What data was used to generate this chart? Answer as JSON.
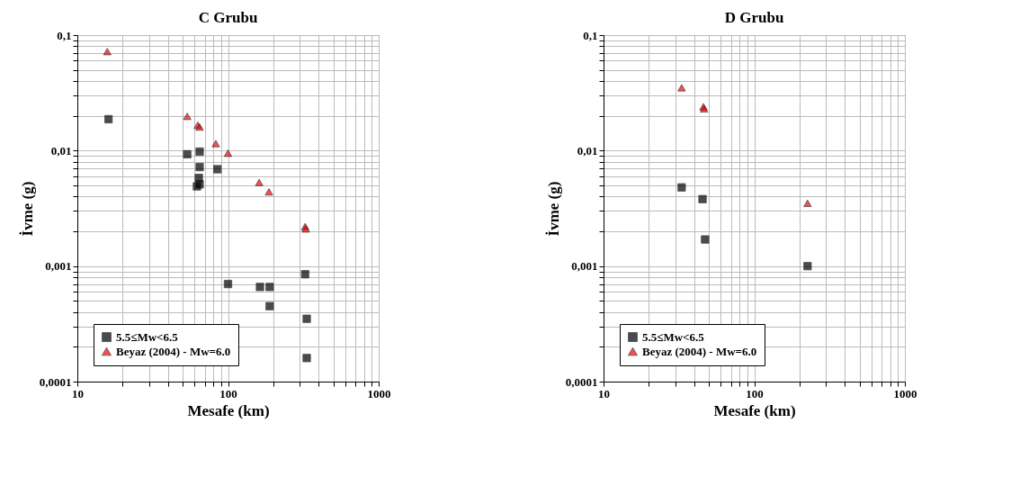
{
  "chart_data": [
    {
      "type": "scatter",
      "title": "C Grubu",
      "xlabel": "Mesafe (km)",
      "ylabel": "İvme (g)",
      "log": "xy",
      "grid": true,
      "legend": "bottom left",
      "xlim": [
        10,
        1000
      ],
      "ylim": [
        0.0001,
        0.1
      ],
      "xticks": [
        10,
        {
          "value": 20,
          "label": null
        },
        {
          "value": 30,
          "label": null
        },
        {
          "value": 40,
          "label": null
        },
        {
          "value": 50,
          "label": null
        },
        {
          "value": 60,
          "label": null
        },
        {
          "value": 70,
          "label": null
        },
        {
          "value": 80,
          "label": null
        },
        {
          "value": 90,
          "label": null
        },
        100,
        {
          "value": 200,
          "label": null
        },
        {
          "value": 300,
          "label": null
        },
        {
          "value": 400,
          "label": null
        },
        {
          "value": 500,
          "label": null
        },
        {
          "value": 600,
          "label": null
        },
        {
          "value": 700,
          "label": null
        },
        {
          "value": 800,
          "label": null
        },
        {
          "value": 900,
          "label": null
        },
        1000
      ],
      "yticks": [
        {
          "value": 0.0001,
          "label": "0,0001"
        },
        {
          "value": 0.0002,
          "label": null
        },
        {
          "value": 0.0003,
          "label": null
        },
        {
          "value": 0.0004,
          "label": null
        },
        {
          "value": 0.0005,
          "label": null
        },
        {
          "value": 0.0006,
          "label": null
        },
        {
          "value": 0.0007,
          "label": null
        },
        {
          "value": 0.0008,
          "label": null
        },
        {
          "value": 0.0009,
          "label": null
        },
        {
          "value": 0.001,
          "label": "0,001"
        },
        {
          "value": 0.002,
          "label": null
        },
        {
          "value": 0.003,
          "label": null
        },
        {
          "value": 0.004,
          "label": null
        },
        {
          "value": 0.005,
          "label": null
        },
        {
          "value": 0.006,
          "label": null
        },
        {
          "value": 0.007,
          "label": null
        },
        {
          "value": 0.008,
          "label": null
        },
        {
          "value": 0.009,
          "label": null
        },
        {
          "value": 0.01,
          "label": "0,01"
        },
        {
          "value": 0.02,
          "label": null
        },
        {
          "value": 0.03,
          "label": null
        },
        {
          "value": 0.04,
          "label": null
        },
        {
          "value": 0.05,
          "label": null
        },
        {
          "value": 0.06,
          "label": null
        },
        {
          "value": 0.07,
          "label": null
        },
        {
          "value": 0.08,
          "label": null
        },
        {
          "value": 0.09,
          "label": null
        },
        {
          "value": 0.1,
          "label": "0,1"
        }
      ],
      "series": [
        {
          "name": "5.5≤Mw<6.5",
          "color": "#000000",
          "marker": "square",
          "x": [
            16.1,
            53.6,
            64.8,
            64.8,
            64,
            64.8,
            62.2,
            85,
            100,
            163,
            189,
            189,
            325,
            333,
            333
          ],
          "values": [
            0.0187,
            0.0093,
            0.0098,
            0.0072,
            0.0058,
            0.0051,
            0.0049,
            0.0069,
            0.0007,
            0.00066,
            0.00066,
            0.00045,
            0.00085,
            0.00035,
            0.00016
          ]
        },
        {
          "name": "Beyaz (2004) - Mw=6.0",
          "color": "#ff0000",
          "marker": "triangle",
          "x": [
            15.8,
            53.6,
            63,
            64.8,
            83,
            100,
            161,
            187,
            325,
            328
          ],
          "values": [
            0.072,
            0.0198,
            0.0166,
            0.016,
            0.0115,
            0.0095,
            0.0053,
            0.0044,
            0.0022,
            0.0021
          ]
        }
      ]
    },
    {
      "type": "scatter",
      "title": "D Grubu",
      "xlabel": "Mesafe (km)",
      "ylabel": "İvme (g)",
      "log": "xy",
      "grid": true,
      "legend": "bottom left",
      "xlim": [
        10,
        1000
      ],
      "ylim": [
        0.0001,
        0.1
      ],
      "xticks": [
        10,
        {
          "value": 20,
          "label": null
        },
        {
          "value": 30,
          "label": null
        },
        {
          "value": 40,
          "label": null
        },
        {
          "value": 50,
          "label": null
        },
        {
          "value": 60,
          "label": null
        },
        {
          "value": 70,
          "label": null
        },
        {
          "value": 80,
          "label": null
        },
        {
          "value": 90,
          "label": null
        },
        100,
        {
          "value": 200,
          "label": null
        },
        {
          "value": 300,
          "label": null
        },
        {
          "value": 400,
          "label": null
        },
        {
          "value": 500,
          "label": null
        },
        {
          "value": 600,
          "label": null
        },
        {
          "value": 700,
          "label": null
        },
        {
          "value": 800,
          "label": null
        },
        {
          "value": 900,
          "label": null
        },
        1000
      ],
      "yticks": [
        {
          "value": 0.0001,
          "label": "0,0001"
        },
        {
          "value": 0.0002,
          "label": null
        },
        {
          "value": 0.0003,
          "label": null
        },
        {
          "value": 0.0004,
          "label": null
        },
        {
          "value": 0.0005,
          "label": null
        },
        {
          "value": 0.0006,
          "label": null
        },
        {
          "value": 0.0007,
          "label": null
        },
        {
          "value": 0.0008,
          "label": null
        },
        {
          "value": 0.0009,
          "label": null
        },
        {
          "value": 0.001,
          "label": "0,001"
        },
        {
          "value": 0.002,
          "label": null
        },
        {
          "value": 0.003,
          "label": null
        },
        {
          "value": 0.004,
          "label": null
        },
        {
          "value": 0.005,
          "label": null
        },
        {
          "value": 0.006,
          "label": null
        },
        {
          "value": 0.007,
          "label": null
        },
        {
          "value": 0.008,
          "label": null
        },
        {
          "value": 0.009,
          "label": null
        },
        {
          "value": 0.01,
          "label": "0,01"
        },
        {
          "value": 0.02,
          "label": null
        },
        {
          "value": 0.03,
          "label": null
        },
        {
          "value": 0.04,
          "label": null
        },
        {
          "value": 0.05,
          "label": null
        },
        {
          "value": 0.06,
          "label": null
        },
        {
          "value": 0.07,
          "label": null
        },
        {
          "value": 0.08,
          "label": null
        },
        {
          "value": 0.09,
          "label": null
        },
        {
          "value": 0.1,
          "label": "0,1"
        }
      ],
      "series": [
        {
          "name": "5.5≤Mw<6.5",
          "color": "#000000",
          "marker": "square",
          "x": [
            33,
            45.4,
            47.2,
            226
          ],
          "values": [
            0.0048,
            0.0038,
            0.0017,
            0.001
          ]
        },
        {
          "name": "Beyaz (2004) - Mw=6.0",
          "color": "#ff0000",
          "marker": "triangle",
          "x": [
            33,
            46,
            46.5,
            226
          ],
          "values": [
            0.035,
            0.024,
            0.023,
            0.0035
          ]
        }
      ]
    }
  ]
}
